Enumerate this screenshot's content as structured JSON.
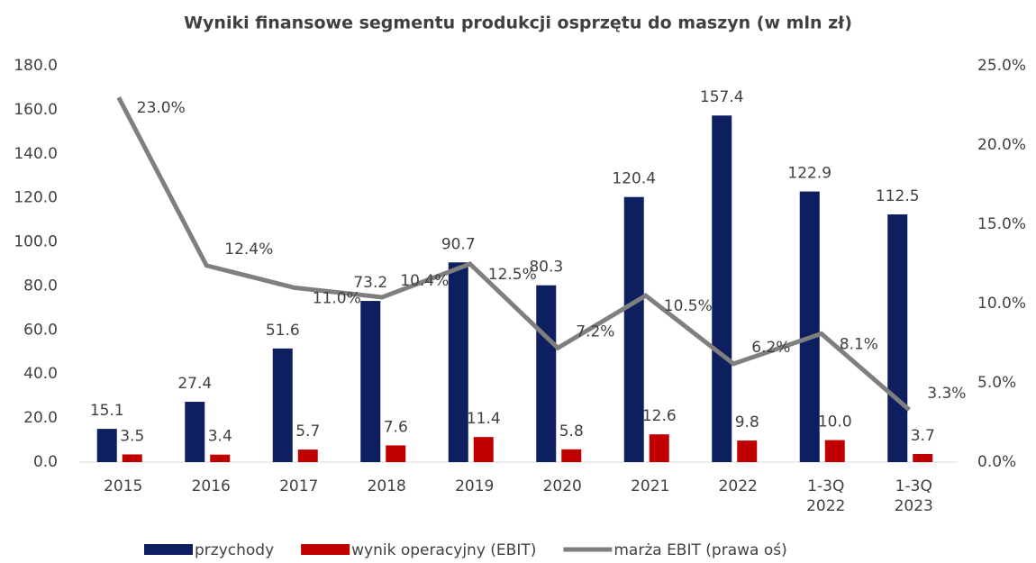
{
  "chart_data": {
    "type": "combo",
    "title": "Wyniki finansowe segmentu produkcji osprzętu do maszyn (w mln zł)",
    "categories": [
      "2015",
      "2016",
      "2017",
      "2018",
      "2019",
      "2020",
      "2021",
      "2022",
      "1-3Q 2022",
      "1-3Q 2023"
    ],
    "series": [
      {
        "name": "przychody",
        "type": "bar",
        "color": "#0d1f5e",
        "values": [
          15.1,
          27.4,
          51.6,
          73.2,
          90.7,
          80.3,
          120.4,
          157.4,
          122.9,
          112.5
        ],
        "value_labels": [
          "15.1",
          "27.4",
          "51.6",
          "73.2",
          "90.7",
          "80.3",
          "120.4",
          "157.4",
          "122.9",
          "112.5"
        ]
      },
      {
        "name": "wynik operacyjny (EBIT)",
        "type": "bar",
        "color": "#c00000",
        "values": [
          3.5,
          3.4,
          5.7,
          7.6,
          11.4,
          5.8,
          12.6,
          9.8,
          10.0,
          3.7
        ],
        "value_labels": [
          "3.5",
          "3.4",
          "5.7",
          "7.6",
          "11.4",
          "5.8",
          "12.6",
          "9.8",
          "10.0",
          "3.7"
        ]
      },
      {
        "name": "marża EBIT (prawa oś)",
        "type": "line",
        "axis": "y2",
        "color": "#7f7f7f",
        "values": [
          23.0,
          12.4,
          11.0,
          10.4,
          12.5,
          7.2,
          10.5,
          6.2,
          8.1,
          3.3
        ],
        "value_labels": [
          "23.0%",
          "12.4%",
          "11.0%",
          "10.4%",
          "12.5%",
          "7.2%",
          "10.5%",
          "6.2%",
          "8.1%",
          "3.3%"
        ]
      }
    ],
    "ylim": [
      0,
      180
    ],
    "yticks": [
      {
        "value": 0,
        "label": "0.0"
      },
      {
        "value": 20,
        "label": "20.0"
      },
      {
        "value": 40,
        "label": "40.0"
      },
      {
        "value": 60,
        "label": "60.0"
      },
      {
        "value": 80,
        "label": "80.0"
      },
      {
        "value": 100,
        "label": "100.0"
      },
      {
        "value": 120,
        "label": "120.0"
      },
      {
        "value": 140,
        "label": "140.0"
      },
      {
        "value": 160,
        "label": "160.0"
      },
      {
        "value": 180,
        "label": "180.0"
      }
    ],
    "y2lim": [
      0,
      25
    ],
    "y2ticks": [
      {
        "value": 0,
        "label": "0.0%"
      },
      {
        "value": 5,
        "label": "5.0%"
      },
      {
        "value": 10,
        "label": "10.0%"
      },
      {
        "value": 15,
        "label": "15.0%"
      },
      {
        "value": 20,
        "label": "20.0%"
      },
      {
        "value": 25,
        "label": "25.0%"
      }
    ],
    "legend": "bottom"
  }
}
